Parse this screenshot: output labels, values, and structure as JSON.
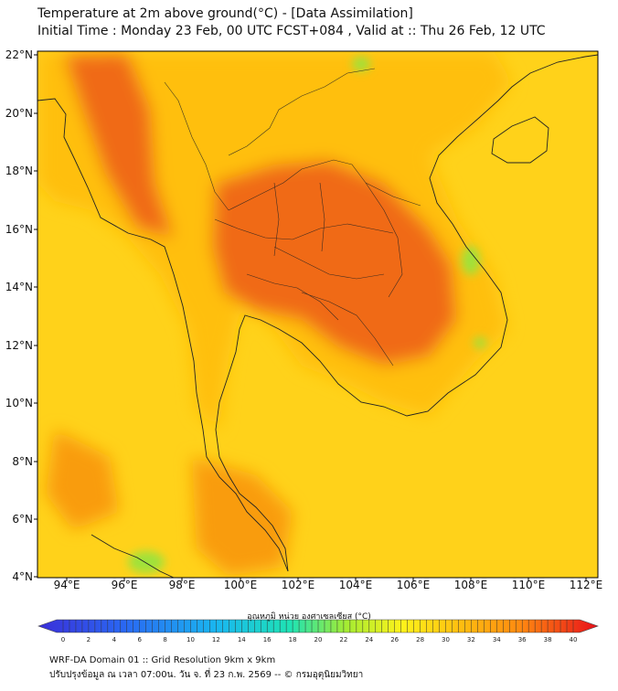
{
  "header": {
    "title": "Temperature at 2m above ground(°C) - [Data Assimilation]",
    "subtitle": "Initial Time : Monday 23 Feb, 00 UTC FCST+084 , Valid at :: Thu 26 Feb, 12 UTC"
  },
  "map": {
    "lat_labels": [
      "22°N",
      "20°N",
      "18°N",
      "16°N",
      "14°N",
      "12°N",
      "10°N",
      "8°N",
      "6°N",
      "4°N"
    ],
    "lon_labels": [
      "94°E",
      "96°E",
      "98°E",
      "100°E",
      "102°E",
      "104°E",
      "106°E",
      "108°E",
      "110°E",
      "112°E"
    ],
    "colors": {
      "sea": "#ffd21a",
      "land_base": "#ffbf10",
      "hot": "#f06a14",
      "warm": "#f99c10",
      "cool_patch": "#9fe23a",
      "border": "#222222"
    }
  },
  "colorbar": {
    "label": "อุณหภูมิ หน่วย องศาเซลเซียส (°C)",
    "ticks": [
      "0",
      "2",
      "4",
      "6",
      "8",
      "10",
      "12",
      "14",
      "16",
      "18",
      "20",
      "22",
      "24",
      "26",
      "28",
      "30",
      "32",
      "34",
      "36",
      "38",
      "40"
    ],
    "min": 0,
    "max": 40
  },
  "footer": {
    "line1": "WRF-DA Domain 01 :: Grid Resolution 9km x 9km",
    "line2": "ปรับปรุงข้อมูล ณ เวลา 07:00น. วัน จ. ที่ 23 ก.พ. 2569 -- © กรมอุตุนิยมวิทยา"
  }
}
